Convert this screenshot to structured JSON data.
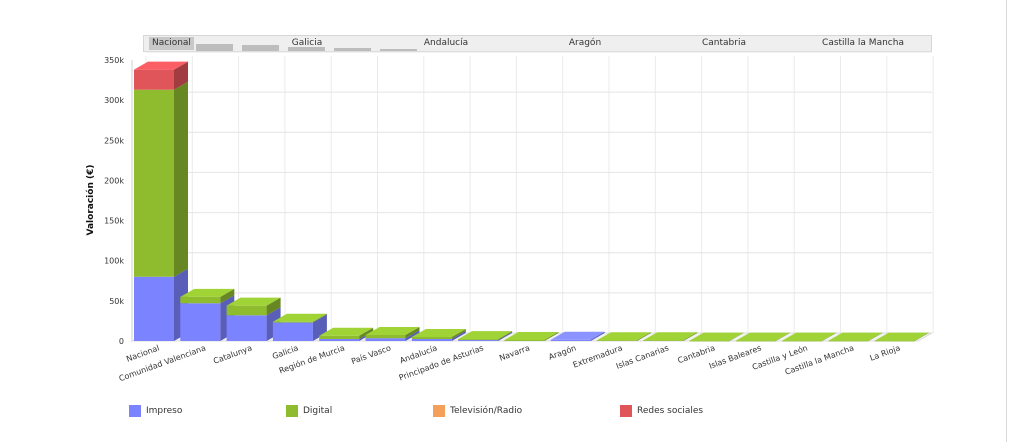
{
  "scroller": {
    "labels": [
      "Nacional",
      "Galicia",
      "Andalucía",
      "Aragón",
      "Cantabria",
      "Castilla la Mancha"
    ]
  },
  "colors": {
    "impreso": "#7b83ff",
    "digital": "#8fbc2f",
    "tv_radio": "#f5a05a",
    "redes": "#e0555a"
  },
  "chart_data": {
    "type": "bar",
    "stacked": true,
    "three_d": true,
    "ylabel": "Valoración (€)",
    "xlabel": "",
    "ylim": [
      0,
      350000
    ],
    "yticks": [
      0,
      50000,
      100000,
      150000,
      200000,
      250000,
      300000,
      350000
    ],
    "ytick_labels": [
      "0",
      "50k",
      "100k",
      "150k",
      "200k",
      "250k",
      "300k",
      "350k"
    ],
    "grid": true,
    "legend_position": "bottom",
    "categories": [
      "Nacional",
      "Comunidad Valenciana",
      "Catalunya",
      "Galicia",
      "Región de Murcia",
      "País Vasco",
      "Andalucía",
      "Principado de Asturias",
      "Navarra",
      "Aragón",
      "Extremadura",
      "Islas Canarias",
      "Cantabria",
      "Islas Baleares",
      "Castilla y León",
      "Castilla la Mancha",
      "La Rioja"
    ],
    "series": [
      {
        "name": "Impreso",
        "color": "#7b83ff",
        "values": [
          80000,
          47000,
          32000,
          23000,
          2500,
          3500,
          2500,
          1200,
          0,
          1500,
          0,
          0,
          0,
          0,
          0,
          0,
          0
        ]
      },
      {
        "name": "Digital",
        "color": "#8fbc2f",
        "values": [
          233000,
          8000,
          12000,
          1000,
          4000,
          4000,
          2500,
          1200,
          1200,
          0,
          1000,
          1000,
          500,
          500,
          500,
          500,
          500
        ]
      },
      {
        "name": "Televisión/Radio",
        "color": "#f5a05a",
        "values": [
          0,
          0,
          0,
          0,
          0,
          0,
          0,
          0,
          0,
          0,
          0,
          0,
          0,
          0,
          0,
          0,
          0
        ]
      },
      {
        "name": "Redes sociales",
        "color": "#e0555a",
        "values": [
          25000,
          0,
          0,
          0,
          0,
          0,
          0,
          0,
          0,
          0,
          0,
          0,
          0,
          0,
          0,
          0,
          0
        ]
      }
    ]
  }
}
